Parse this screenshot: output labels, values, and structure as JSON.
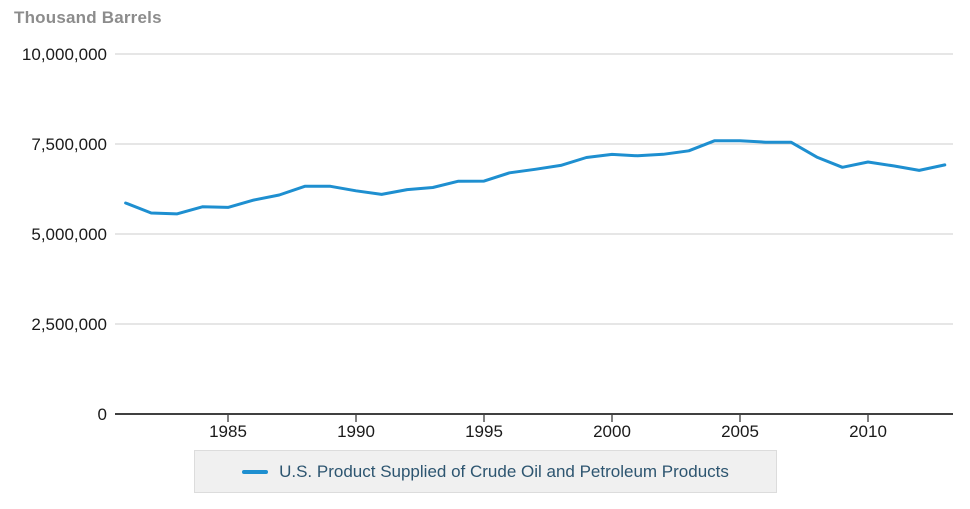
{
  "chart_data": {
    "type": "line",
    "title": "Thousand Barrels",
    "xlabel": "",
    "ylabel": "Thousand Barrels",
    "x": [
      1981,
      1982,
      1983,
      1984,
      1985,
      1986,
      1987,
      1988,
      1989,
      1990,
      1991,
      1992,
      1993,
      1994,
      1995,
      1996,
      1997,
      1998,
      1999,
      2000,
      2001,
      2002,
      2003,
      2004,
      2005,
      2006,
      2007,
      2008,
      2009,
      2010,
      2011,
      2012,
      2013
    ],
    "series": [
      {
        "name": "U.S. Product Supplied of Crude Oil and Petroleum Products",
        "values": [
          5861170,
          5583040,
          5559315,
          5755716,
          5739990,
          5942565,
          6082725,
          6325578,
          6323625,
          6200620,
          6100610,
          6234078,
          6291505,
          6467070,
          6469625,
          6701094,
          6796300,
          6904705,
          7124435,
          7210566,
          7171885,
          7212765,
          7312410,
          7587546,
          7592730,
          7550755,
          7548200,
          7136268,
          6851415,
          7000700,
          6891930,
          6767340,
          6920765
        ]
      }
    ],
    "ylim": [
      0,
      10000000
    ],
    "yticks": [
      0,
      2500000,
      5000000,
      7500000,
      10000000
    ],
    "ytick_labels": [
      "0",
      "2,500,000",
      "5,000,000",
      "7,500,000",
      "10,000,000"
    ],
    "xticks": [
      1985,
      1990,
      1995,
      2000,
      2005,
      2010
    ],
    "xtick_labels": [
      "1985",
      "1990",
      "1995",
      "2000",
      "2005",
      "2010"
    ],
    "grid": true,
    "legend_position": "bottom",
    "colors": {
      "line": "#1e8fd0",
      "gridline": "#cccccc",
      "axis": "#000000",
      "tick_text": "#1a1a1a",
      "title_text": "#8c8c8c",
      "legend_bg": "#f0f0f0",
      "legend_border": "#dcdcdc",
      "legend_text": "#2d5570"
    }
  }
}
